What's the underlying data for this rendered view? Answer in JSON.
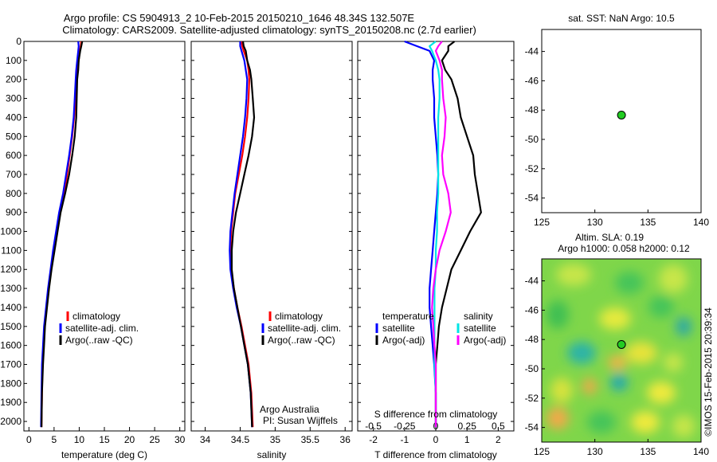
{
  "header": {
    "title_line1": "Argo profile: CS 5904913_2 10-Feb-2015 20150210_1646 48.34S 132.507E",
    "title_line2": "Climatology: CARS2009. Satellite-adjusted climatology: synTS_20150208.nc (2.7d earlier)"
  },
  "colors": {
    "climatology": "#ff0000",
    "satellite": "#0000ff",
    "argo": "#000000",
    "salinity_satellite": "#00e5e5",
    "salinity_argo": "#ff00ff",
    "marker": "#22cc22"
  },
  "icons": {
    "map_marker": "circle-marker-icon"
  },
  "chart_data": [
    {
      "type": "line",
      "xlabel": "temperature (deg C)",
      "xlim": [
        -1,
        31
      ],
      "xticks": [
        0,
        5,
        10,
        15,
        20,
        25,
        30
      ],
      "ylim": [
        2050,
        0
      ],
      "yticks": [
        0,
        100,
        200,
        300,
        400,
        500,
        600,
        700,
        800,
        900,
        1000,
        1100,
        1200,
        1300,
        1400,
        1500,
        1600,
        1700,
        1800,
        1900,
        2000
      ],
      "grid": false,
      "legend_position": "lower-left",
      "series": [
        {
          "name": "climatology",
          "color": "#ff0000",
          "x": [
            10.4,
            10.3,
            10.1,
            9.9,
            9.6,
            9.5,
            9.3,
            9.0,
            8.6,
            8.1,
            7.6,
            7.0,
            6.2,
            5.6,
            5.0,
            4.4,
            3.9,
            3.5,
            3.1,
            2.9,
            2.7,
            2.6,
            2.5
          ],
          "y": [
            0,
            25,
            50,
            100,
            150,
            200,
            300,
            400,
            500,
            600,
            700,
            800,
            900,
            1000,
            1100,
            1200,
            1300,
            1400,
            1500,
            1600,
            1700,
            1850,
            2030
          ]
        },
        {
          "name": "satellite-adj. clim.",
          "color": "#0000ff",
          "x": [
            9.8,
            9.9,
            9.8,
            9.6,
            9.4,
            9.3,
            9.1,
            8.9,
            8.5,
            8.0,
            7.4,
            6.8,
            6.0,
            5.4,
            4.8,
            4.3,
            3.8,
            3.4,
            3.0,
            2.8,
            2.6,
            2.5,
            2.4
          ],
          "y": [
            0,
            25,
            50,
            100,
            150,
            200,
            300,
            400,
            500,
            600,
            700,
            800,
            900,
            1000,
            1100,
            1200,
            1300,
            1400,
            1500,
            1600,
            1700,
            1850,
            2030
          ]
        },
        {
          "name": "Argo(..raw -QC)",
          "color": "#000000",
          "x": [
            10.6,
            10.4,
            10.2,
            9.9,
            9.8,
            9.6,
            9.5,
            9.4,
            9.1,
            8.6,
            8.0,
            7.2,
            6.3,
            5.7,
            5.1,
            4.5,
            4.0,
            3.6,
            3.2,
            3.0,
            2.8,
            2.6,
            2.5
          ],
          "y": [
            0,
            25,
            50,
            100,
            150,
            200,
            300,
            400,
            500,
            600,
            700,
            800,
            900,
            1000,
            1100,
            1200,
            1300,
            1400,
            1500,
            1600,
            1700,
            1850,
            2030
          ]
        }
      ]
    },
    {
      "type": "line",
      "xlabel": "salinity",
      "xlim": [
        33.8,
        36.1
      ],
      "xticks": [
        34,
        34.5,
        35,
        35.5,
        36
      ],
      "ylim": [
        2050,
        0
      ],
      "grid": false,
      "legend_position": "lower-right",
      "annotations": [
        "Argo Australia",
        "PI: Susan Wijffels"
      ],
      "series": [
        {
          "name": "climatology",
          "color": "#ff0000",
          "x": [
            34.52,
            34.53,
            34.55,
            34.6,
            34.62,
            34.63,
            34.62,
            34.6,
            34.57,
            34.53,
            34.48,
            34.43,
            34.4,
            34.37,
            34.36,
            34.37,
            34.41,
            34.46,
            34.52,
            34.57,
            34.62,
            34.66,
            34.68
          ],
          "y": [
            0,
            25,
            50,
            100,
            150,
            200,
            300,
            400,
            500,
            600,
            700,
            800,
            900,
            1000,
            1100,
            1200,
            1300,
            1400,
            1500,
            1600,
            1700,
            1850,
            2030
          ]
        },
        {
          "name": "satellite-adj. clim.",
          "color": "#0000ff",
          "x": [
            34.5,
            34.5,
            34.52,
            34.56,
            34.58,
            34.6,
            34.59,
            34.57,
            34.54,
            34.5,
            34.46,
            34.42,
            34.39,
            34.36,
            34.35,
            34.36,
            34.4,
            34.45,
            34.51,
            34.56,
            34.61,
            34.65,
            34.67
          ],
          "y": [
            0,
            25,
            50,
            100,
            150,
            200,
            300,
            400,
            500,
            600,
            700,
            800,
            900,
            1000,
            1100,
            1200,
            1300,
            1400,
            1500,
            1600,
            1700,
            1850,
            2030
          ]
        },
        {
          "name": "Argo(..raw -QC)",
          "color": "#000000",
          "x": [
            34.54,
            34.55,
            34.58,
            34.6,
            34.64,
            34.66,
            34.68,
            34.7,
            34.67,
            34.62,
            34.56,
            34.5,
            34.44,
            34.4,
            34.38,
            34.38,
            34.41,
            34.46,
            34.51,
            34.56,
            34.61,
            34.65,
            34.67
          ],
          "y": [
            0,
            25,
            50,
            100,
            150,
            200,
            300,
            400,
            500,
            600,
            700,
            800,
            900,
            1000,
            1100,
            1200,
            1300,
            1400,
            1500,
            1600,
            1700,
            1850,
            2030
          ]
        }
      ]
    },
    {
      "type": "line",
      "xlabel": "T difference from climatology",
      "top_axis_label": "S difference from climatology",
      "xlim": [
        -2.5,
        2.5
      ],
      "xticks": [
        -2,
        -1,
        0,
        1,
        2
      ],
      "top_xticks": [
        -0.5,
        -0.25,
        0,
        0.25,
        0.5
      ],
      "top_xtick_labels": [
        "-0.5",
        "-0.25",
        "0",
        "0.25",
        "0.5"
      ],
      "ylim": [
        2050,
        0
      ],
      "grid": false,
      "legend_position": "lower-center",
      "legend_groups": [
        "temperature",
        "salinity"
      ],
      "series": [
        {
          "name": "satellite",
          "group": "temperature",
          "color": "#0000ff",
          "x": [
            -1.0,
            -0.6,
            -0.2,
            -0.05,
            -0.1,
            -0.1,
            -0.05,
            -0.05,
            0.0,
            0.05,
            0.08,
            0.05,
            0.0,
            -0.05,
            -0.1,
            -0.15,
            -0.2,
            -0.2,
            -0.15,
            -0.1,
            -0.05,
            0.0,
            0.0
          ],
          "y": [
            0,
            25,
            50,
            100,
            150,
            200,
            300,
            400,
            500,
            600,
            700,
            800,
            900,
            1000,
            1100,
            1200,
            1300,
            1400,
            1500,
            1600,
            1700,
            1850,
            2030
          ]
        },
        {
          "name": "Argo(-adj)",
          "group": "temperature",
          "color": "#000000",
          "x": [
            0.6,
            0.4,
            0.4,
            0.2,
            0.3,
            0.5,
            0.7,
            0.8,
            1.0,
            1.2,
            1.25,
            1.35,
            1.45,
            1.1,
            0.8,
            0.5,
            0.35,
            0.2,
            0.1,
            0.05,
            0.0,
            0.0,
            0.0
          ],
          "y": [
            0,
            25,
            50,
            100,
            150,
            200,
            300,
            400,
            500,
            600,
            700,
            800,
            900,
            1000,
            1100,
            1200,
            1300,
            1400,
            1500,
            1600,
            1700,
            1850,
            2030
          ]
        },
        {
          "name": "satellite",
          "group": "salinity",
          "color": "#00e5e5",
          "x": [
            0.0,
            -0.05,
            -0.03,
            0.0,
            0.02,
            0.03,
            0.03,
            0.02,
            0.02,
            0.02,
            0.02,
            0.02,
            0.01,
            0.01,
            0.0,
            0.0,
            -0.01,
            -0.01,
            -0.01,
            -0.01,
            -0.01,
            0.0,
            0.0
          ],
          "y": [
            0,
            25,
            50,
            100,
            150,
            200,
            300,
            400,
            500,
            600,
            700,
            800,
            900,
            1000,
            1100,
            1200,
            1300,
            1400,
            1500,
            1600,
            1700,
            1850,
            2030
          ]
        },
        {
          "name": "Argo(-adj)",
          "group": "salinity",
          "color": "#ff00ff",
          "x": [
            0.05,
            0.02,
            0.0,
            0.03,
            0.05,
            0.05,
            0.06,
            0.08,
            0.07,
            0.05,
            0.06,
            0.1,
            0.12,
            0.08,
            0.03,
            0.0,
            -0.02,
            -0.03,
            -0.02,
            -0.01,
            0.0,
            0.0,
            0.0
          ],
          "y": [
            0,
            25,
            50,
            100,
            150,
            200,
            300,
            400,
            500,
            600,
            700,
            800,
            900,
            1000,
            1100,
            1200,
            1300,
            1400,
            1500,
            1600,
            1700,
            1850,
            2030
          ]
        }
      ]
    },
    {
      "type": "scatter",
      "title": "sat. SST: NaN Argo: 10.5",
      "xlim": [
        125,
        140
      ],
      "ylim": [
        -55,
        -42.5
      ],
      "xticks": [
        125,
        130,
        135,
        140
      ],
      "yticks": [
        -44,
        -46,
        -48,
        -50,
        -52,
        -54
      ],
      "grid": false,
      "points": [
        {
          "x": 132.507,
          "y": -48.34
        }
      ]
    },
    {
      "type": "heatmap",
      "title_line1": "Altim. SLA: 0.19",
      "title_line2": "Argo h1000: 0.058 h2000: 0.12",
      "side_label": "©IMOS 15-Feb-2015 20:39:34",
      "xlim": [
        125,
        140
      ],
      "ylim": [
        -55,
        -42.5
      ],
      "xticks": [
        125,
        130,
        135,
        140
      ],
      "yticks": [
        -44,
        -46,
        -48,
        -50,
        -52,
        -54
      ],
      "grid": false,
      "points": [
        {
          "x": 132.507,
          "y": -48.34
        }
      ]
    }
  ]
}
